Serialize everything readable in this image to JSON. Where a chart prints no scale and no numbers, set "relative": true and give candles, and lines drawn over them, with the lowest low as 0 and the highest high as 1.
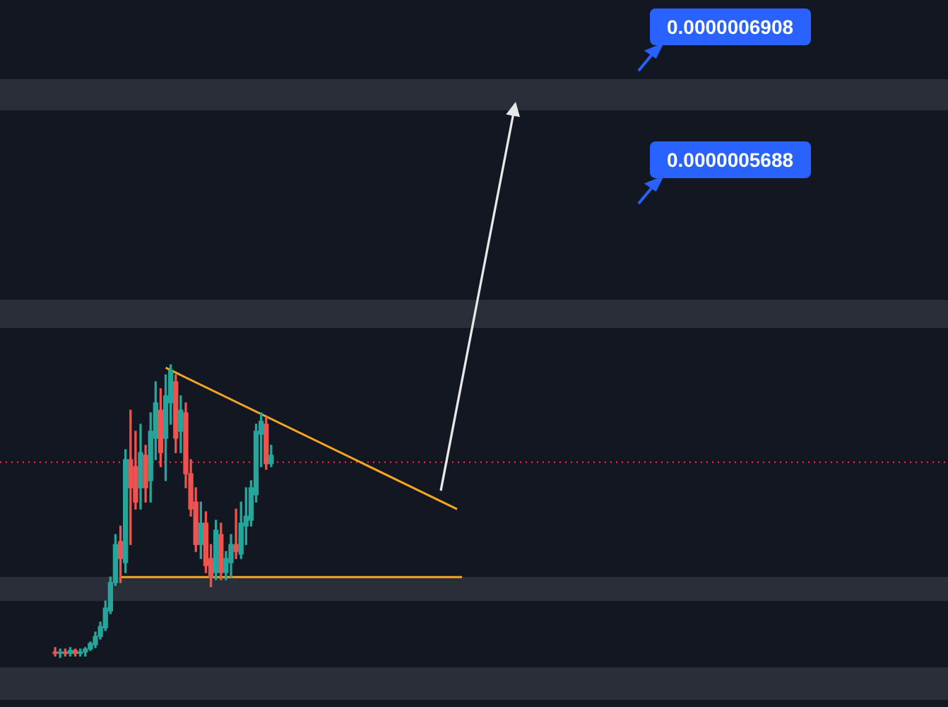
{
  "chart_data": {
    "type": "candlestick",
    "relative": true,
    "categories": [
      null,
      null,
      null,
      null,
      null,
      null,
      null,
      null,
      null,
      null,
      null,
      null,
      null,
      null,
      null,
      null,
      null,
      null,
      null,
      null,
      null,
      null,
      null,
      null,
      null,
      null,
      null,
      null,
      null,
      null,
      null,
      null,
      null,
      null,
      null,
      null,
      null,
      null,
      null,
      null,
      null,
      null,
      null,
      null,
      null,
      null,
      null,
      null,
      null,
      null,
      null,
      null,
      null,
      null,
      null,
      null,
      null,
      null,
      null,
      null,
      null,
      null,
      null,
      null,
      null,
      null,
      null,
      null,
      null,
      null,
      null,
      null,
      null,
      null,
      null,
      null,
      null,
      null,
      null,
      null,
      null,
      null
    ],
    "ohlc": [
      [
        0.019,
        0.034,
        0.005,
        0.014
      ],
      [
        0.014,
        0.029,
        0,
        0.019
      ],
      [
        0.019,
        0.029,
        0.005,
        0.014
      ],
      [
        0.014,
        0.034,
        0.005,
        0.024
      ],
      [
        0.024,
        0.029,
        0.005,
        0.014
      ],
      [
        0.014,
        0.029,
        0.005,
        0.019
      ],
      [
        0.019,
        0.034,
        0.005,
        0.029
      ],
      [
        0.029,
        0.053,
        0.024,
        0.048
      ],
      [
        0.043,
        0.087,
        0.034,
        0.072
      ],
      [
        0.072,
        0.121,
        0.063,
        0.106
      ],
      [
        0.101,
        0.193,
        0.092,
        0.169
      ],
      [
        0.159,
        0.275,
        0.15,
        0.256
      ],
      [
        0.256,
        0.42,
        0.246,
        0.386
      ],
      [
        0.396,
        0.449,
        0.256,
        0.338
      ],
      [
        0.324,
        0.71,
        0.29,
        0.676
      ],
      [
        0.676,
        0.845,
        0.386,
        0.58
      ],
      [
        0.652,
        0.773,
        0.507,
        0.531
      ],
      [
        0.58,
        0.797,
        0.507,
        0.7
      ],
      [
        0.691,
        0.725,
        0.531,
        0.58
      ],
      [
        0.604,
        0.836,
        0.531,
        0.773
      ],
      [
        0.749,
        0.942,
        0.676,
        0.87
      ],
      [
        0.845,
        0.918,
        0.652,
        0.7
      ],
      [
        0.749,
        0.966,
        0.604,
        0.894
      ],
      [
        0.87,
        1,
        0.797,
        0.981
      ],
      [
        0.942,
        0.966,
        0.7,
        0.749
      ],
      [
        0.773,
        0.894,
        0.7,
        0.845
      ],
      [
        0.836,
        0.87,
        0.58,
        0.628
      ],
      [
        0.628,
        0.676,
        0.483,
        0.507
      ],
      [
        0.531,
        0.58,
        0.362,
        0.386
      ],
      [
        0.386,
        0.531,
        0.338,
        0.459
      ],
      [
        0.459,
        0.498,
        0.29,
        0.314
      ],
      [
        0.338,
        0.386,
        0.242,
        0.275
      ],
      [
        0.29,
        0.469,
        0.266,
        0.435
      ],
      [
        0.42,
        0.459,
        0.266,
        0.29
      ],
      [
        0.29,
        0.362,
        0.266,
        0.338
      ],
      [
        0.324,
        0.42,
        0.275,
        0.386
      ],
      [
        0.386,
        0.507,
        0.338,
        0.362
      ],
      [
        0.353,
        0.531,
        0.338,
        0.459
      ],
      [
        0.449,
        0.58,
        0.386,
        0.483
      ],
      [
        0.469,
        0.604,
        0.449,
        0.58
      ],
      [
        0.556,
        0.797,
        0.531,
        0.773
      ],
      [
        0.763,
        0.836,
        0.652,
        0.807
      ],
      [
        0.797,
        0.821,
        0.643,
        0.662
      ],
      [
        0.662,
        0.725,
        0.652,
        0.691
      ],
      null,
      null,
      null,
      null,
      null,
      null,
      null,
      null,
      null,
      null,
      null,
      null,
      null,
      null,
      null,
      null,
      null,
      null,
      null,
      null,
      null,
      null,
      null,
      null,
      null,
      null,
      null,
      null,
      null,
      null,
      null,
      null,
      null,
      null,
      null,
      null,
      null,
      null
    ],
    "colors": [
      "#ef5350",
      "#26a69a",
      "#ef5350",
      "#26a69a",
      "#ef5350",
      "#26a69a",
      "#26a69a",
      "#26a69a",
      "#26a69a",
      "#26a69a",
      "#26a69a",
      "#26a69a",
      "#26a69a",
      "#ef5350",
      "#26a69a",
      "#ef5350",
      "#ef5350",
      "#26a69a",
      "#ef5350",
      "#26a69a",
      "#26a69a",
      "#ef5350",
      "#26a69a",
      "#26a69a",
      "#ef5350",
      "#26a69a",
      "#ef5350",
      "#ef5350",
      "#ef5350",
      "#26a69a",
      "#ef5350",
      "#ef5350",
      "#26a69a",
      "#ef5350",
      "#26a69a",
      "#26a69a",
      "#ef5350",
      "#26a69a",
      "#26a69a",
      "#26a69a",
      "#26a69a",
      "#26a69a",
      "#ef5350",
      "#26a69a",
      null,
      null,
      null,
      null,
      null,
      null,
      null,
      null,
      null,
      null,
      null,
      null,
      null,
      null,
      null,
      null,
      null,
      null,
      null,
      null,
      null,
      null,
      null,
      null,
      null,
      null,
      null,
      null,
      null,
      null,
      null,
      null,
      null,
      null,
      null,
      null,
      null,
      null
    ],
    "series": [
      {
        "type": "line",
        "color": "#f5a623",
        "values": [
          null,
          null,
          null,
          null,
          null,
          null,
          null,
          null,
          null,
          null,
          null,
          null,
          null,
          null,
          null,
          null,
          null,
          null,
          null,
          null,
          null,
          null,
          0.99,
          null,
          null,
          null,
          null,
          null,
          null,
          null,
          null,
          null,
          null,
          null,
          null,
          null,
          null,
          null,
          null,
          null,
          null,
          null,
          null,
          null,
          null,
          null,
          null,
          null,
          null,
          null,
          null,
          null,
          null,
          null,
          null,
          null,
          null,
          null,
          null,
          null,
          null,
          null,
          null,
          null,
          null,
          null,
          null,
          null,
          null,
          null,
          null,
          null,
          null,
          null,
          null,
          null,
          null,
          null,
          null,
          null,
          0.507,
          null
        ]
      },
      {
        "type": "line",
        "color": "#f5a623",
        "values": [
          null,
          null,
          null,
          null,
          null,
          null,
          null,
          null,
          null,
          null,
          null,
          null,
          null,
          0.275,
          null,
          null,
          null,
          null,
          null,
          null,
          null,
          null,
          null,
          null,
          null,
          null,
          null,
          null,
          null,
          null,
          null,
          null,
          null,
          null,
          null,
          null,
          null,
          null,
          null,
          null,
          null,
          null,
          null,
          null,
          null,
          null,
          null,
          null,
          null,
          null,
          null,
          null,
          null,
          null,
          null,
          null,
          null,
          null,
          null,
          null,
          null,
          null,
          null,
          null,
          null,
          null,
          null,
          null,
          null,
          null,
          null,
          null,
          null,
          null,
          null,
          null,
          null,
          null,
          null,
          null,
          null,
          0.275
        ]
      }
    ],
    "ref_lines": [
      {
        "axis": "y",
        "value": 0.667,
        "color": "#f23645",
        "line_style": "dotted"
      }
    ],
    "annotations": [
      "0.0000006908",
      "0.0000005688"
    ],
    "legend": false
  }
}
